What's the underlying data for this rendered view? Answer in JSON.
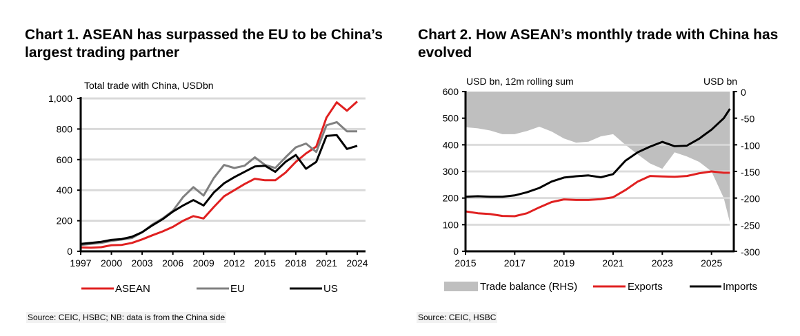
{
  "chart_data": [
    {
      "type": "line",
      "title": "Chart 1. ASEAN has surpassed the EU to be China’s largest trading partner",
      "subtitle": "Total trade with China, USDbn",
      "xlabel": "",
      "ylabel": "Total trade with China, USDbn",
      "ylim": [
        0,
        1000
      ],
      "yticks": [
        0,
        200,
        400,
        600,
        800,
        1000
      ],
      "ytick_labels": [
        "0",
        "200",
        "400",
        "600",
        "800",
        "1,000"
      ],
      "xticks": [
        1997,
        2000,
        2003,
        2006,
        2009,
        2012,
        2015,
        2018,
        2021,
        2024
      ],
      "xtick_labels": [
        "1997",
        "2000",
        "2003",
        "2006",
        "2009",
        "2012",
        "2015",
        "2018",
        "2021",
        "2024"
      ],
      "grid": true,
      "legend_position": "bottom",
      "x": [
        1997,
        1998,
        1999,
        2000,
        2001,
        2002,
        2003,
        2004,
        2005,
        2006,
        2007,
        2008,
        2009,
        2010,
        2011,
        2012,
        2013,
        2014,
        2015,
        2016,
        2017,
        2018,
        2019,
        2020,
        2021,
        2022,
        2023,
        2024
      ],
      "series": [
        {
          "name": "ASEAN",
          "color": "#e02020",
          "values": [
            25,
            24,
            27,
            40,
            42,
            55,
            78,
            105,
            130,
            160,
            200,
            230,
            215,
            290,
            360,
            400,
            440,
            475,
            465,
            465,
            515,
            585,
            640,
            685,
            875,
            975,
            920,
            980
          ]
        },
        {
          "name": "EU",
          "color": "#808080",
          "values": [
            42,
            48,
            55,
            68,
            77,
            87,
            125,
            175,
            215,
            265,
            355,
            420,
            365,
            480,
            565,
            545,
            560,
            615,
            565,
            545,
            615,
            680,
            705,
            650,
            825,
            845,
            785,
            785
          ]
        },
        {
          "name": "US",
          "color": "#000000",
          "values": [
            48,
            55,
            62,
            75,
            80,
            95,
            125,
            170,
            210,
            260,
            300,
            335,
            300,
            385,
            445,
            485,
            520,
            555,
            560,
            520,
            585,
            630,
            540,
            585,
            755,
            760,
            670,
            690
          ]
        }
      ]
    },
    {
      "type": "line",
      "title": "Chart 2. How ASEAN’s monthly trade with China has evolved",
      "subtitle_left": "USD bn, 12m rolling sum",
      "subtitle_right": "USD bn",
      "ylim": [
        0,
        600
      ],
      "yticks": [
        0,
        100,
        200,
        300,
        400,
        500,
        600
      ],
      "ytick_labels": [
        "0",
        "100",
        "200",
        "300",
        "400",
        "500",
        "600"
      ],
      "y2lim": [
        -300,
        0
      ],
      "y2ticks": [
        -300,
        -250,
        -200,
        -150,
        -100,
        -50,
        0
      ],
      "y2tick_labels": [
        "-300",
        "-250",
        "-200",
        "-150",
        "-100",
        "-50",
        "0"
      ],
      "xticks": [
        2015,
        2017,
        2019,
        2021,
        2023,
        2025
      ],
      "xtick_labels": [
        "2015",
        "2017",
        "2019",
        "2021",
        "2023",
        "2025"
      ],
      "xlim": [
        2015,
        2025.85
      ],
      "grid": true,
      "legend_position": "bottom",
      "x": [
        2015.0,
        2015.5,
        2016.0,
        2016.5,
        2017.0,
        2017.5,
        2018.0,
        2018.5,
        2019.0,
        2019.5,
        2020.0,
        2020.5,
        2021.0,
        2021.5,
        2022.0,
        2022.5,
        2023.0,
        2023.5,
        2024.0,
        2024.5,
        2025.0,
        2025.5,
        2025.75
      ],
      "series": [
        {
          "name": "Trade balance (RHS)",
          "type": "area",
          "axis": "right",
          "color": "#bfbfbf",
          "values": [
            -67,
            -69,
            -73,
            -80,
            -80,
            -74,
            -66,
            -75,
            -88,
            -96,
            -94,
            -84,
            -80,
            -100,
            -118,
            -135,
            -145,
            -114,
            -122,
            -132,
            -150,
            -200,
            -246
          ]
        },
        {
          "name": "Exports",
          "type": "line",
          "axis": "left",
          "color": "#e02020",
          "values": [
            150,
            143,
            140,
            133,
            132,
            143,
            165,
            185,
            195,
            193,
            193,
            196,
            203,
            230,
            262,
            283,
            281,
            280,
            283,
            293,
            300,
            295,
            295
          ]
        },
        {
          "name": "Imports",
          "type": "line",
          "axis": "left",
          "color": "#000000",
          "values": [
            205,
            207,
            205,
            205,
            210,
            222,
            238,
            262,
            277,
            282,
            285,
            278,
            290,
            340,
            372,
            393,
            411,
            395,
            397,
            423,
            457,
            500,
            535
          ]
        }
      ]
    }
  ],
  "sources": {
    "chart1": "Source: CEIC, HSBC; NB: data is from the China side",
    "chart2": "Source: CEIC, HSBC"
  }
}
